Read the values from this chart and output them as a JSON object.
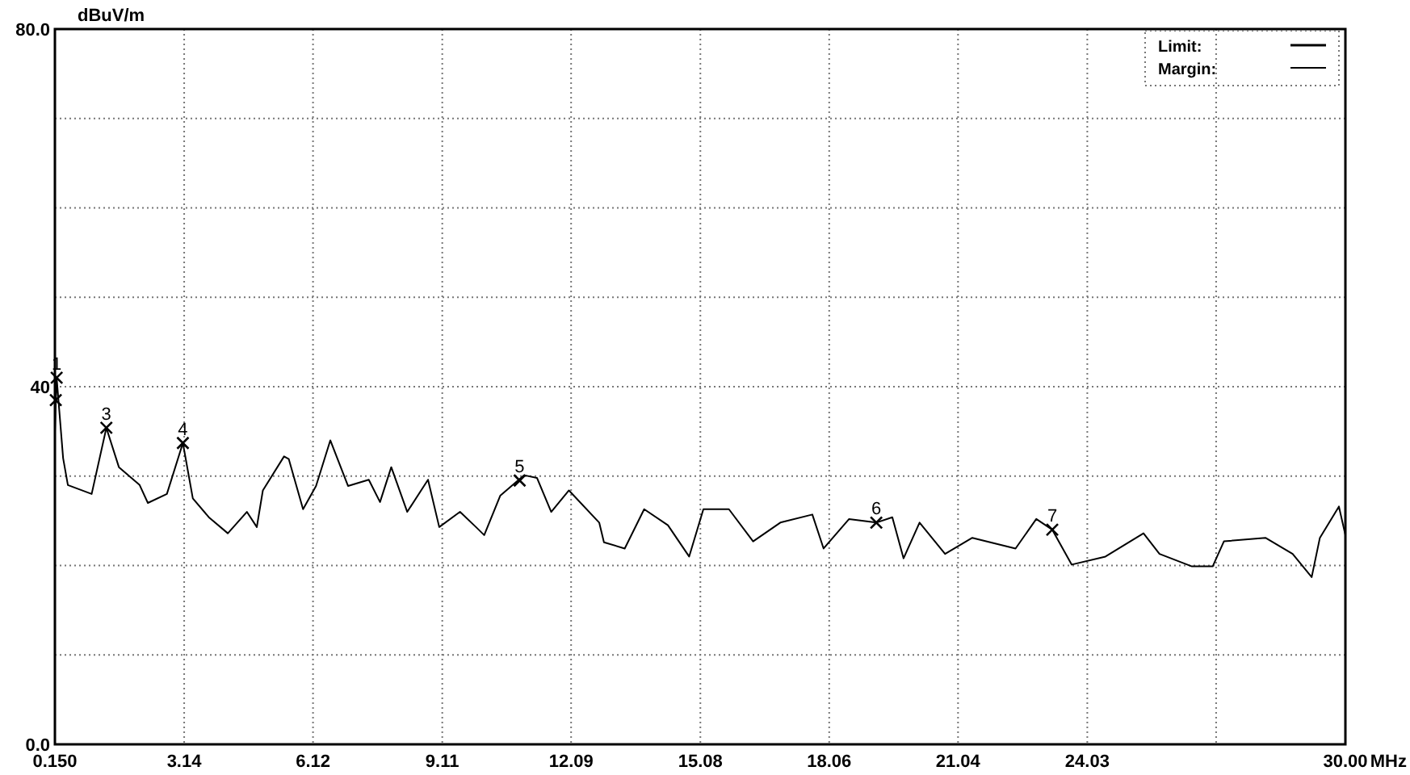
{
  "chart_data": {
    "type": "line",
    "xlabel": "MHz",
    "ylabel": "dBuV/m",
    "xlim": [
      0.15,
      30
    ],
    "ylim": [
      0,
      80
    ],
    "xticks": [
      {
        "value": 0.15,
        "label": "0.150"
      },
      3.14,
      6.12,
      9.11,
      12.09,
      15.08,
      18.06,
      21.04,
      24.03,
      {
        "value": 27.01,
        "label": null
      },
      {
        "value": 30,
        "label": "30.00"
      }
    ],
    "yticks": [
      {
        "value": 0,
        "label": "0.0"
      },
      {
        "value": 10,
        "label": null
      },
      {
        "value": 20,
        "label": null
      },
      {
        "value": 30,
        "label": null
      },
      40,
      {
        "value": 50,
        "label": null
      },
      {
        "value": 60,
        "label": null
      },
      {
        "value": 70,
        "label": null
      },
      {
        "value": 80,
        "label": "80.0"
      }
    ],
    "grid": true,
    "marker": "none",
    "line_style": "solid",
    "series": [
      {
        "color": "#000000",
        "x": [
          0.15,
          0.19,
          0.34,
          0.45,
          1.0,
          1.34,
          1.63,
          2.11,
          2.3,
          2.74,
          3.11,
          3.34,
          3.71,
          4.15,
          4.59,
          4.82,
          4.96,
          5.45,
          5.56,
          5.89,
          6.19,
          6.52,
          6.93,
          7.41,
          7.67,
          7.93,
          8.3,
          8.78,
          9.04,
          9.52,
          9.89,
          10.08,
          10.45,
          11.0,
          11.3,
          11.63,
          12.04,
          12.74,
          12.85,
          13.33,
          13.78,
          14.33,
          14.82,
          15.15,
          15.74,
          16.3,
          16.93,
          17.67,
          17.93,
          18.52,
          19.15,
          19.52,
          19.78,
          20.15,
          20.74,
          21.37,
          22.37,
          22.85,
          23.22,
          23.67,
          24.45,
          25.33,
          25.7,
          26.45,
          26.93,
          27.19,
          28.15,
          28.78,
          29.22,
          29.41,
          29.85,
          30.0
        ],
        "values": [
          35,
          41,
          32,
          29,
          28,
          35.4,
          31,
          29,
          27,
          28,
          33.7,
          27.5,
          25.4,
          23.6,
          26,
          24.3,
          28.4,
          32.2,
          31.9,
          26.3,
          28.9,
          34,
          28.9,
          29.6,
          27.1,
          31,
          26,
          29.6,
          24.3,
          26,
          24.3,
          23.4,
          27.8,
          30.1,
          29.8,
          26,
          28.4,
          24.8,
          22.6,
          21.9,
          26.3,
          24.5,
          21,
          26.3,
          26.3,
          22.7,
          24.8,
          25.7,
          21.9,
          25.2,
          24.8,
          25.4,
          20.8,
          24.8,
          21.3,
          23.1,
          21.9,
          25.2,
          24,
          20.1,
          21,
          23.6,
          21.3,
          19.9,
          19.9,
          22.7,
          23.1,
          21.3,
          18.7,
          23.1,
          26.6,
          23.4
        ]
      },
      {
        "type": "scatter",
        "marker": "cross",
        "color": "#000000",
        "x": [
          0.19,
          0.17,
          1.34,
          3.11,
          10.9,
          19.15,
          23.22
        ],
        "values": [
          41,
          38.5,
          35.4,
          33.7,
          29.5,
          24.8,
          24
        ]
      }
    ],
    "annotations": [
      "Limit:",
      "Margin:",
      {
        "text": "1",
        "x": 0.19,
        "y": 41
      },
      {
        "text": "3",
        "x": 1.34,
        "y": 35.4
      },
      {
        "text": "4",
        "x": 3.11,
        "y": 33.7
      },
      {
        "text": "5",
        "x": 10.9,
        "y": 29.5
      },
      {
        "text": "6",
        "x": 19.15,
        "y": 24.8
      },
      {
        "text": "7",
        "x": 23.22,
        "y": 24
      }
    ]
  }
}
